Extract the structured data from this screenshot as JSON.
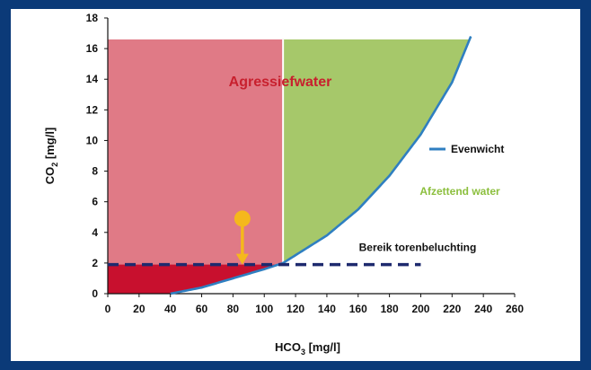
{
  "chart_data": {
    "type": "area",
    "xlabel_main": "HCO",
    "xlabel_sub": "3",
    "xlabel_unit": " [mg/l]",
    "ylabel_main": "CO",
    "ylabel_sub": "2",
    "ylabel_unit": " [mg/l]",
    "xlim": [
      0,
      260
    ],
    "ylim": [
      0,
      18
    ],
    "x_ticks": [
      0,
      20,
      40,
      60,
      80,
      100,
      120,
      140,
      160,
      180,
      200,
      220,
      240,
      260
    ],
    "y_ticks": [
      0,
      2,
      4,
      6,
      8,
      10,
      12,
      14,
      16,
      18
    ],
    "equilibrium_curve": {
      "name": "Evenwicht",
      "color": "#2f7fc1",
      "x": [
        40,
        60,
        80,
        100,
        112,
        140,
        160,
        180,
        200,
        220,
        232
      ],
      "y": [
        0,
        0.4,
        1.0,
        1.6,
        2.0,
        3.8,
        5.5,
        7.7,
        10.4,
        13.8,
        16.8
      ]
    },
    "regions": [
      {
        "label": "Agressiefwater",
        "color": "#e07a86",
        "label_color": "#c8202e"
      },
      {
        "label": "Afzettend water",
        "color": "#a6c86a",
        "label_color": "#8cbf3e"
      },
      {
        "label": "",
        "color": "#c8102e"
      }
    ],
    "region_top_y": 16.6,
    "divider_x": 112,
    "tower_aeration": {
      "label": "Bereik torenbeluchting",
      "y": 1.9,
      "x_range": [
        0,
        200
      ],
      "color": "#1e2a6e"
    },
    "arrow": {
      "x": 86,
      "y_from": 4.9,
      "y_to": 1.9,
      "color": "#f5b81c"
    }
  }
}
